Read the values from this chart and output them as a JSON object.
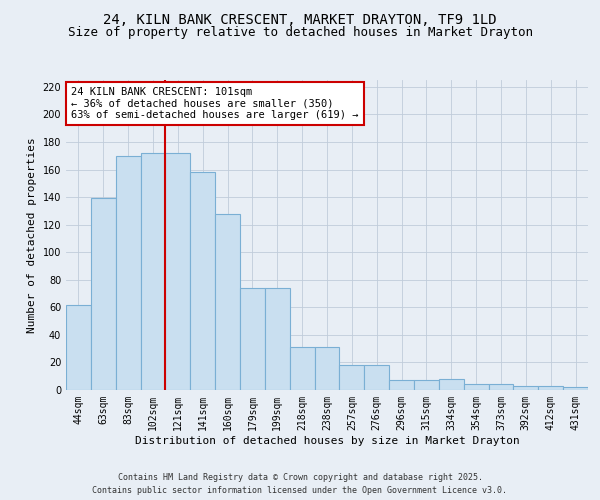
{
  "title": "24, KILN BANK CRESCENT, MARKET DRAYTON, TF9 1LD",
  "subtitle": "Size of property relative to detached houses in Market Drayton",
  "xlabel": "Distribution of detached houses by size in Market Drayton",
  "ylabel": "Number of detached properties",
  "categories": [
    "44sqm",
    "63sqm",
    "83sqm",
    "102sqm",
    "121sqm",
    "141sqm",
    "160sqm",
    "179sqm",
    "199sqm",
    "218sqm",
    "238sqm",
    "257sqm",
    "276sqm",
    "296sqm",
    "315sqm",
    "334sqm",
    "354sqm",
    "373sqm",
    "392sqm",
    "412sqm",
    "431sqm"
  ],
  "values": [
    62,
    139,
    170,
    172,
    172,
    158,
    128,
    74,
    74,
    31,
    31,
    18,
    18,
    7,
    7,
    8,
    4,
    4,
    3,
    3,
    2
  ],
  "bar_color": "#c9dff0",
  "bar_edge_color": "#7aafd4",
  "background_color": "#e8eef5",
  "plot_bg_color": "#e8eef5",
  "grid_color": "#c0ccda",
  "vline_color": "#cc0000",
  "vline_pos": 3.5,
  "annotation_text": "24 KILN BANK CRESCENT: 101sqm\n← 36% of detached houses are smaller (350)\n63% of semi-detached houses are larger (619) →",
  "annotation_box_facecolor": "#ffffff",
  "annotation_box_edgecolor": "#cc0000",
  "ylim_max": 225,
  "yticks": [
    0,
    20,
    40,
    60,
    80,
    100,
    120,
    140,
    160,
    180,
    200,
    220
  ],
  "footer": "Contains HM Land Registry data © Crown copyright and database right 2025.\nContains public sector information licensed under the Open Government Licence v3.0.",
  "title_fontsize": 10,
  "subtitle_fontsize": 9,
  "xlabel_fontsize": 8,
  "ylabel_fontsize": 8,
  "tick_fontsize": 7,
  "annotation_fontsize": 7.5,
  "footer_fontsize": 6
}
